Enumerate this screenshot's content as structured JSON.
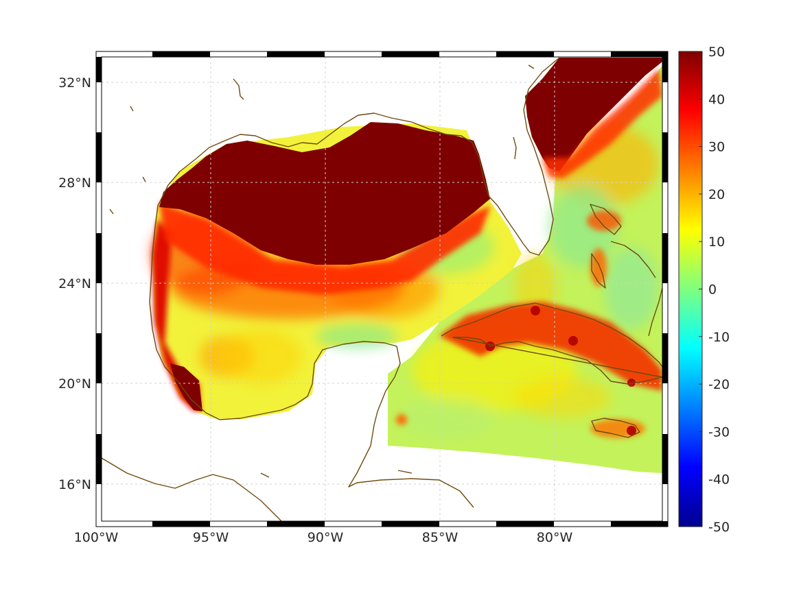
{
  "map": {
    "lon_range": [
      -100,
      -75.2
    ],
    "lat_range": [
      14.3,
      33.0
    ],
    "lon_ticks": [
      {
        "lon": -100,
        "label": "100°W"
      },
      {
        "lon": -95,
        "label": "95°W"
      },
      {
        "lon": -90,
        "label": "90°W"
      },
      {
        "lon": -85,
        "label": "85°W"
      },
      {
        "lon": -80,
        "label": "80°W"
      }
    ],
    "lat_ticks": [
      {
        "lat": 32,
        "label": "32°N"
      },
      {
        "lat": 28,
        "label": "28°N"
      },
      {
        "lat": 24,
        "label": "24°N"
      },
      {
        "lat": 20,
        "label": "20°N"
      },
      {
        "lat": 16,
        "label": "16°N"
      }
    ],
    "grid": true,
    "colors": {
      "land_outline": "#6e4a0e",
      "grid": "#d0d0d0",
      "frame": "#000000"
    }
  },
  "colorbar": {
    "min": -50,
    "max": 50,
    "colormap": "jet",
    "tick_labels": [
      "50",
      "40",
      "30",
      "20",
      "10",
      "0",
      "-10",
      "-20",
      "-30",
      "-40",
      "-50"
    ],
    "tick_values": [
      50,
      40,
      30,
      20,
      10,
      0,
      -10,
      -20,
      -30,
      -40,
      -50
    ]
  }
}
